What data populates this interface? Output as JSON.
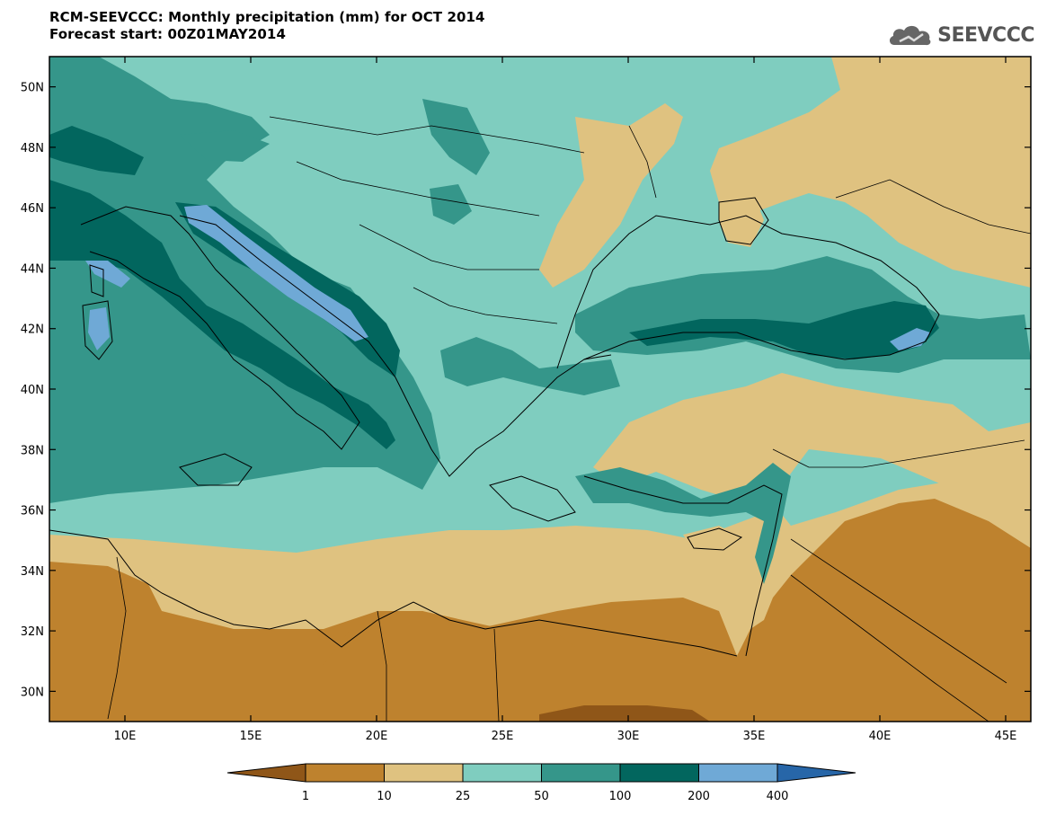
{
  "header": {
    "title": "RCM-SEEVCCC: Monthly precipitation (mm) for OCT 2014",
    "subtitle": "Forecast start: 00Z01MAY2014"
  },
  "logo": {
    "text": "SEEVCCC",
    "icon": "cloud-logo-icon"
  },
  "map": {
    "lon_range": [
      7,
      46
    ],
    "lat_range": [
      29,
      51
    ],
    "lat_ticks": [
      "50N",
      "48N",
      "46N",
      "44N",
      "42N",
      "40N",
      "38N",
      "36N",
      "34N",
      "32N",
      "30N"
    ],
    "lon_ticks": [
      "10E",
      "15E",
      "20E",
      "25E",
      "30E",
      "35E",
      "40E",
      "45E"
    ]
  },
  "legend": {
    "labels": [
      "1",
      "10",
      "25",
      "50",
      "100",
      "200",
      "400"
    ],
    "colors": [
      "#8f5618",
      "#be822e",
      "#dfc280",
      "#7fcdbf",
      "#35968a",
      "#02665e",
      "#6fa9d6",
      "#2766a8"
    ]
  }
}
